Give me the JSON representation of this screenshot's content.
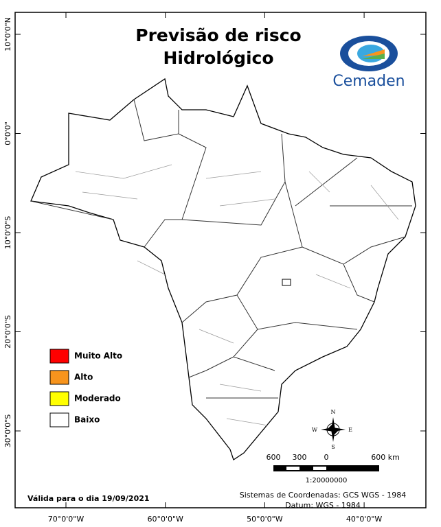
{
  "header": {
    "title_lines": [
      "Previsão de risco",
      "Hidrológico"
    ],
    "logo_text": "Cemaden"
  },
  "legend": [
    {
      "label": "Muito Alto",
      "color": "#ff0000"
    },
    {
      "label": "Alto",
      "color": "#f7941d"
    },
    {
      "label": "Moderado",
      "color": "#ffff00"
    },
    {
      "label": "Baixo",
      "color": "#ffffff"
    }
  ],
  "latitude_labels": [
    "10°0'0\"N",
    "0°0'0\"",
    "10°0'0\"S",
    "20°0'0\"S",
    "30°0'0\"S"
  ],
  "longitude_labels": [
    "70°0'0\"W",
    "60°0'0\"W",
    "50°0'0\"W",
    "40°0'0\"W"
  ],
  "compass": {
    "north": "N",
    "south": "S",
    "east": "E",
    "west": "W"
  },
  "scale": {
    "labels": [
      "600",
      "300",
      "0",
      "600 km"
    ],
    "ratio": "1:20000000"
  },
  "footer": {
    "validity": "Válida para o dia 19/09/2021",
    "coordinates": "Sistemas de Coordenadas: GCS WGS - 1984",
    "datum": "Datum: WGS - 1984"
  }
}
